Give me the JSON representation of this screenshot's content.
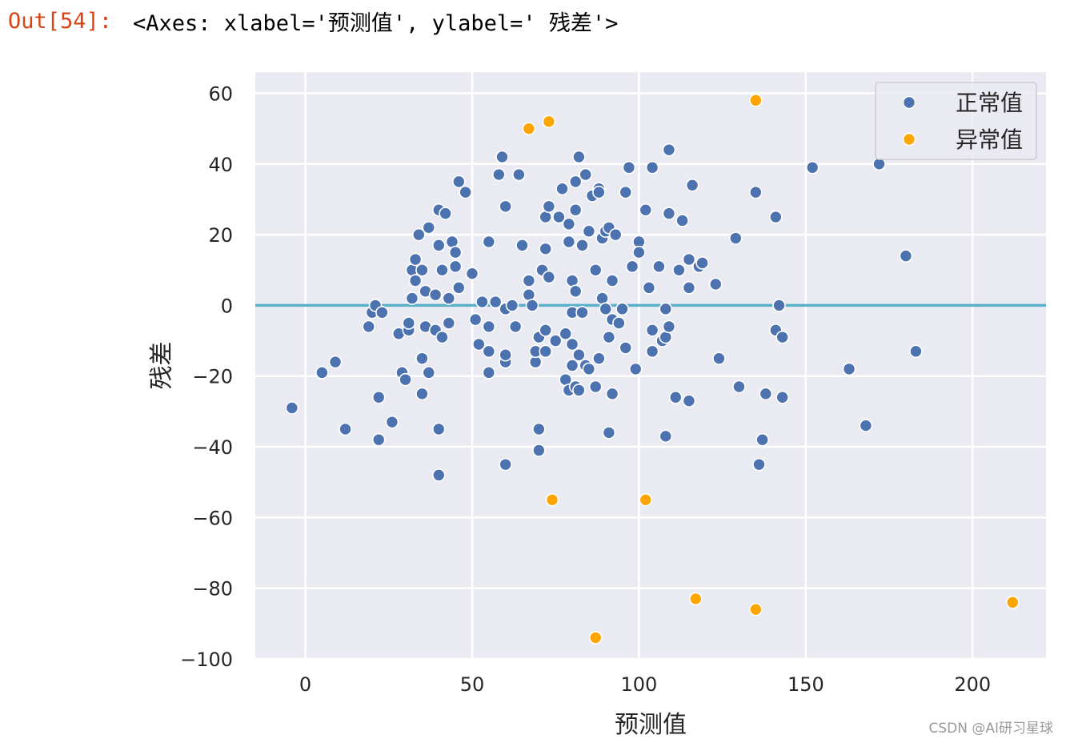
{
  "cell": {
    "prompt": "Out[54]:",
    "repr": "<Axes: xlabel='预测值', ylabel=' 残差'>"
  },
  "watermark": "CSDN @AI研习星球",
  "colors": {
    "background": "#eaeaf2",
    "grid": "#ffffff",
    "normal": "#4c72b0",
    "outlier": "#ffa500",
    "zero_line": "#5ab0c8",
    "text": "#262626"
  },
  "chart_data": {
    "type": "scatter",
    "xlabel": "预测值",
    "ylabel": "残差",
    "xlim": [
      -15,
      222
    ],
    "ylim": [
      -100,
      66
    ],
    "xticks": [
      "0",
      "50",
      "100",
      "150",
      "200"
    ],
    "yticks": [
      "60",
      "40",
      "20",
      "0",
      "−20",
      "−40",
      "−60",
      "−80",
      "−100"
    ],
    "grid": true,
    "legend_position": "top-right",
    "hline": 0,
    "series": [
      {
        "name": "正常值",
        "color": "#4c72b0",
        "points": [
          [
            -4,
            -29
          ],
          [
            5,
            -19
          ],
          [
            9,
            -16
          ],
          [
            12,
            -35
          ],
          [
            19,
            -6
          ],
          [
            20,
            -2
          ],
          [
            21,
            0
          ],
          [
            22,
            -26
          ],
          [
            22,
            -38
          ],
          [
            23,
            -2
          ],
          [
            26,
            -33
          ],
          [
            28,
            -8
          ],
          [
            29,
            -19
          ],
          [
            30,
            -21
          ],
          [
            31,
            -7
          ],
          [
            31,
            -5
          ],
          [
            32,
            10
          ],
          [
            32,
            2
          ],
          [
            33,
            13
          ],
          [
            34,
            20
          ],
          [
            33,
            7
          ],
          [
            35,
            10
          ],
          [
            35,
            -15
          ],
          [
            35,
            -25
          ],
          [
            36,
            -6
          ],
          [
            36,
            4
          ],
          [
            37,
            22
          ],
          [
            37,
            -19
          ],
          [
            39,
            -7
          ],
          [
            39,
            3
          ],
          [
            40,
            27
          ],
          [
            40,
            17
          ],
          [
            40,
            -35
          ],
          [
            40,
            -48
          ],
          [
            41,
            -9
          ],
          [
            41,
            10
          ],
          [
            42,
            26
          ],
          [
            43,
            2
          ],
          [
            43,
            -5
          ],
          [
            44,
            18
          ],
          [
            45,
            15
          ],
          [
            45,
            11
          ],
          [
            46,
            35
          ],
          [
            46,
            5
          ],
          [
            48,
            32
          ],
          [
            50,
            9
          ],
          [
            51,
            -4
          ],
          [
            52,
            -11
          ],
          [
            53,
            1
          ],
          [
            55,
            18
          ],
          [
            55,
            -6
          ],
          [
            55,
            -13
          ],
          [
            55,
            -19
          ],
          [
            57,
            1
          ],
          [
            58,
            37
          ],
          [
            59,
            42
          ],
          [
            60,
            28
          ],
          [
            60,
            -1
          ],
          [
            60,
            -16
          ],
          [
            60,
            -45
          ],
          [
            60,
            -14
          ],
          [
            62,
            0
          ],
          [
            63,
            -6
          ],
          [
            64,
            37
          ],
          [
            65,
            17
          ],
          [
            67,
            7
          ],
          [
            67,
            3
          ],
          [
            68,
            0
          ],
          [
            69,
            -16
          ],
          [
            69,
            -13
          ],
          [
            70,
            -9
          ],
          [
            70,
            -35
          ],
          [
            70,
            -41
          ],
          [
            71,
            10
          ],
          [
            72,
            25
          ],
          [
            72,
            16
          ],
          [
            72,
            -7
          ],
          [
            72,
            -13
          ],
          [
            73,
            28
          ],
          [
            73,
            8
          ],
          [
            75,
            -10
          ],
          [
            76,
            25
          ],
          [
            77,
            33
          ],
          [
            78,
            -8
          ],
          [
            78,
            -21
          ],
          [
            79,
            23
          ],
          [
            79,
            18
          ],
          [
            79,
            -24
          ],
          [
            80,
            -11
          ],
          [
            80,
            7
          ],
          [
            80,
            -2
          ],
          [
            80,
            -17
          ],
          [
            81,
            35
          ],
          [
            81,
            27
          ],
          [
            81,
            4
          ],
          [
            81,
            -23
          ],
          [
            82,
            42
          ],
          [
            82,
            -14
          ],
          [
            82,
            -24
          ],
          [
            83,
            17
          ],
          [
            83,
            -2
          ],
          [
            84,
            37
          ],
          [
            84,
            -17
          ],
          [
            85,
            -18
          ],
          [
            85,
            21
          ],
          [
            86,
            31
          ],
          [
            87,
            -23
          ],
          [
            87,
            10
          ],
          [
            88,
            33
          ],
          [
            88,
            32
          ],
          [
            88,
            -15
          ],
          [
            89,
            19
          ],
          [
            89,
            2
          ],
          [
            90,
            21
          ],
          [
            90,
            -1
          ],
          [
            91,
            22
          ],
          [
            91,
            -9
          ],
          [
            91,
            -36
          ],
          [
            92,
            -4
          ],
          [
            92,
            7
          ],
          [
            92,
            -25
          ],
          [
            93,
            20
          ],
          [
            94,
            -5
          ],
          [
            95,
            -1
          ],
          [
            96,
            32
          ],
          [
            96,
            -12
          ],
          [
            97,
            39
          ],
          [
            98,
            11
          ],
          [
            99,
            -18
          ],
          [
            100,
            18
          ],
          [
            100,
            15
          ],
          [
            102,
            27
          ],
          [
            103,
            5
          ],
          [
            104,
            -13
          ],
          [
            104,
            39
          ],
          [
            104,
            -7
          ],
          [
            106,
            11
          ],
          [
            107,
            -10
          ],
          [
            108,
            -1
          ],
          [
            108,
            -9
          ],
          [
            108,
            -37
          ],
          [
            109,
            44
          ],
          [
            109,
            26
          ],
          [
            109,
            -6
          ],
          [
            111,
            -26
          ],
          [
            112,
            10
          ],
          [
            113,
            24
          ],
          [
            115,
            13
          ],
          [
            115,
            5
          ],
          [
            115,
            -27
          ],
          [
            116,
            34
          ],
          [
            118,
            11
          ],
          [
            119,
            12
          ],
          [
            123,
            6
          ],
          [
            124,
            -15
          ],
          [
            129,
            19
          ],
          [
            130,
            -23
          ],
          [
            135,
            32
          ],
          [
            136,
            -45
          ],
          [
            137,
            -38
          ],
          [
            138,
            -25
          ],
          [
            141,
            25
          ],
          [
            141,
            -7
          ],
          [
            142,
            0
          ],
          [
            143,
            -9
          ],
          [
            143,
            -26
          ],
          [
            152,
            39
          ],
          [
            163,
            -18
          ],
          [
            168,
            -34
          ],
          [
            172,
            40
          ],
          [
            180,
            14
          ],
          [
            183,
            -13
          ]
        ]
      },
      {
        "name": "异常值",
        "color": "#ffa500",
        "points": [
          [
            67,
            50
          ],
          [
            73,
            52
          ],
          [
            74,
            -55
          ],
          [
            87,
            -94
          ],
          [
            102,
            -55
          ],
          [
            117,
            -83
          ],
          [
            135,
            58
          ],
          [
            135,
            -86
          ],
          [
            212,
            -84
          ]
        ]
      }
    ]
  }
}
